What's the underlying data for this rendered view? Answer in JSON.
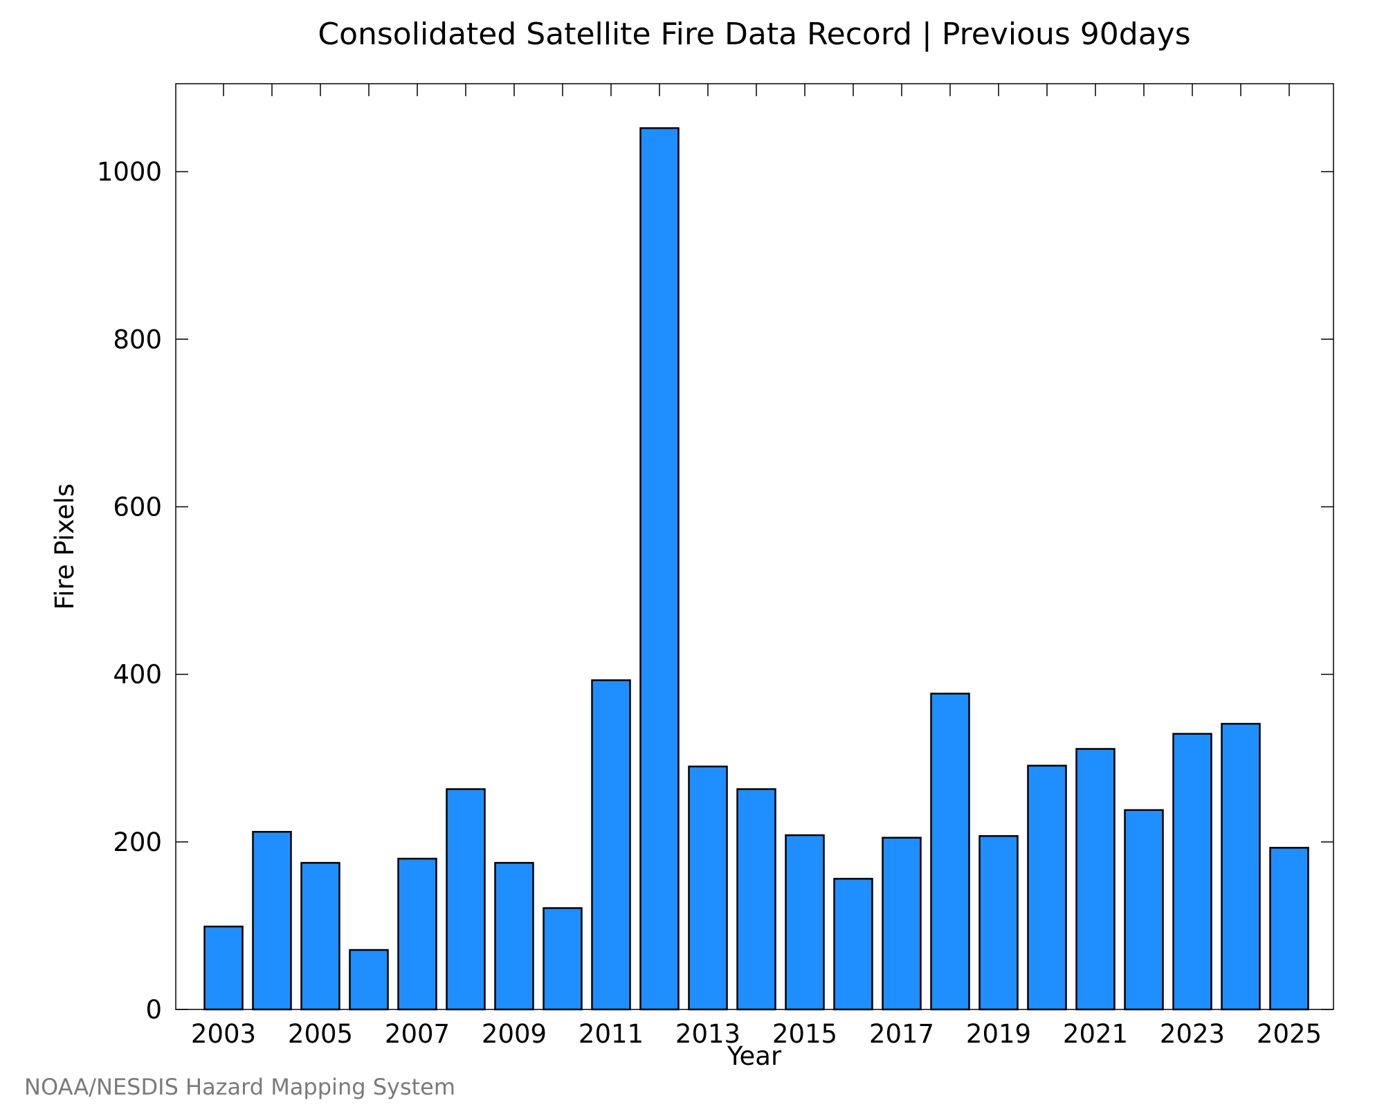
{
  "footer": "NOAA/NESDIS Hazard Mapping System",
  "colors": {
    "bar_fill": "#1f8fff",
    "bar_stroke": "#000000",
    "axis": "#000000",
    "footer_text": "#7a7a7a"
  },
  "chart_data": {
    "type": "bar",
    "title": "Consolidated Satellite Fire Data Record | Previous 90days",
    "xlabel": "Year",
    "ylabel": "Fire Pixels",
    "categories": [
      "2003",
      "2004",
      "2005",
      "2006",
      "2007",
      "2008",
      "2009",
      "2010",
      "2011",
      "2012",
      "2013",
      "2014",
      "2015",
      "2016",
      "2017",
      "2018",
      "2019",
      "2020",
      "2021",
      "2022",
      "2023",
      "2024",
      "2025"
    ],
    "values": [
      99,
      212,
      175,
      71,
      180,
      263,
      175,
      121,
      393,
      1052,
      290,
      263,
      208,
      156,
      205,
      377,
      207,
      291,
      311,
      238,
      329,
      341,
      193
    ],
    "x_tick_labels": [
      "2003",
      "2005",
      "2007",
      "2009",
      "2011",
      "2013",
      "2015",
      "2017",
      "2019",
      "2021",
      "2023",
      "2025"
    ],
    "y_ticks": [
      0,
      200,
      400,
      600,
      800,
      1000
    ],
    "ylim": [
      0,
      1105
    ],
    "grid": false,
    "legend": "none"
  }
}
